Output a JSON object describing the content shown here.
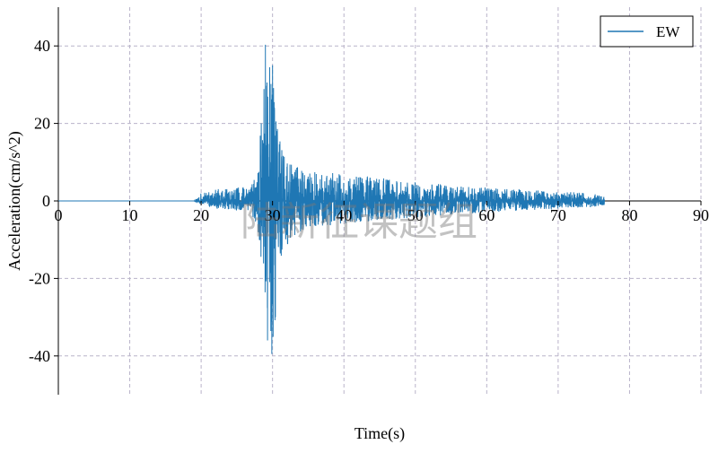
{
  "chart_data": {
    "type": "line",
    "title": "",
    "xlabel": "Time(s)",
    "ylabel": "Acceleration(cm/s^2)",
    "xlim": [
      0,
      90
    ],
    "ylim": [
      -50,
      50
    ],
    "xticks": [
      0,
      10,
      20,
      30,
      40,
      50,
      60,
      70,
      80,
      90
    ],
    "yticks": [
      -40,
      -20,
      0,
      20,
      40
    ],
    "grid": true,
    "legend_position": "top-right",
    "series": [
      {
        "name": "EW",
        "color": "#1f77b4",
        "envelope": {
          "x": [
            0,
            19,
            20,
            22,
            25,
            27,
            28,
            28.5,
            29,
            29.5,
            30,
            30.5,
            31,
            32,
            33,
            35,
            40,
            45,
            50,
            55,
            60,
            65,
            70,
            75,
            76.5
          ],
          "upper": [
            0,
            0,
            2,
            3,
            3.5,
            4,
            9,
            25,
            40,
            28,
            35,
            22,
            18,
            10,
            9,
            8,
            7,
            6,
            5,
            4,
            3.5,
            3,
            2.5,
            2,
            1.5
          ],
          "lower": [
            0,
            0,
            -1,
            -2,
            -2.5,
            -3,
            -8,
            -18,
            -28,
            -36,
            -39,
            -30,
            -20,
            -12,
            -9,
            -7,
            -6,
            -5,
            -4.5,
            -3.5,
            -3,
            -2.5,
            -2,
            -1.5,
            -1.2
          ]
        },
        "end_time": 76.5
      }
    ]
  },
  "watermark": "陆新征课题组"
}
